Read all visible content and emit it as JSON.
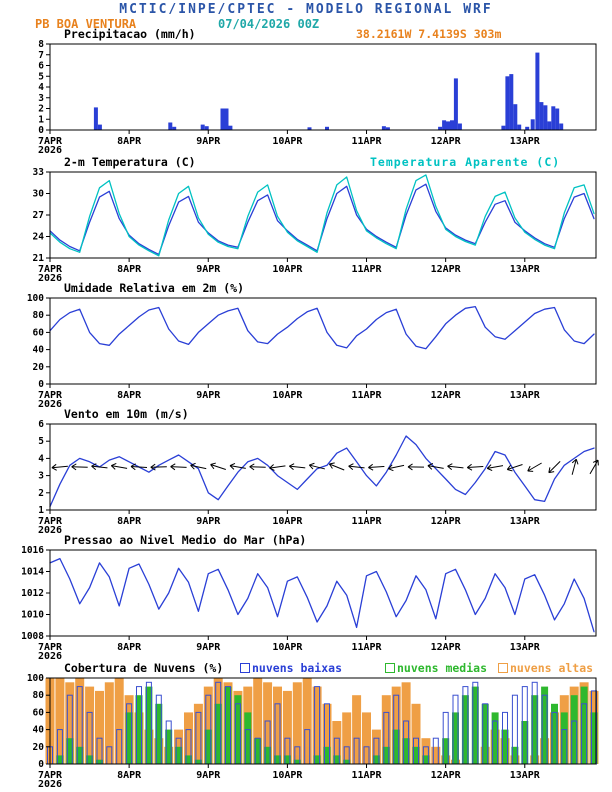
{
  "header": {
    "title": "MCTIC/INPE/CPTEC - MODELO REGIONAL WRF",
    "station": "PB BOA VENTURA",
    "run": "07/04/2026 00Z",
    "location": "38.2161W 7.4139S 303m"
  },
  "colors": {
    "header_blue": "#2b55a8",
    "teal": "#1fa8a8",
    "orange": "#e8821e",
    "series_blue": "#2a3fd6",
    "cyan": "#00c2c2",
    "green": "#2eb82e",
    "cloud_orange": "#ef9f45",
    "ink": "#000000"
  },
  "time_axis": {
    "xlim": [
      0,
      6.9
    ],
    "xticks": [
      0,
      1,
      2,
      3,
      4,
      5,
      6
    ],
    "xtick_labels": [
      "7APR",
      "8APR",
      "9APR",
      "10APR",
      "11APR",
      "12APR",
      "13APR"
    ],
    "year_label": "2026",
    "sample_start": 0,
    "sample_step": 0.125,
    "sample_count": 56
  },
  "chart_data": [
    {
      "name": "precipitation",
      "type": "bar",
      "title": "Precipitacao (mm/h)",
      "ylabel": "mm/h",
      "ylim": [
        0,
        8
      ],
      "yticks": [
        0,
        1,
        2,
        3,
        4,
        5,
        6,
        7,
        8
      ],
      "bar_color": "#2a3fd6",
      "bars": [
        [
          0.58,
          2.1
        ],
        [
          0.63,
          0.5
        ],
        [
          1.52,
          0.7
        ],
        [
          1.57,
          0.3
        ],
        [
          1.93,
          0.5
        ],
        [
          1.98,
          0.35
        ],
        [
          2.18,
          2.0
        ],
        [
          2.23,
          2.0
        ],
        [
          2.28,
          0.4
        ],
        [
          3.28,
          0.25
        ],
        [
          3.5,
          0.3
        ],
        [
          4.22,
          0.35
        ],
        [
          4.27,
          0.25
        ],
        [
          4.93,
          0.3
        ],
        [
          4.98,
          0.9
        ],
        [
          5.03,
          0.8
        ],
        [
          5.08,
          0.9
        ],
        [
          5.13,
          4.8
        ],
        [
          5.18,
          0.6
        ],
        [
          5.73,
          0.4
        ],
        [
          5.78,
          5.0
        ],
        [
          5.83,
          5.2
        ],
        [
          5.88,
          2.4
        ],
        [
          5.93,
          0.5
        ],
        [
          6.03,
          0.3
        ],
        [
          6.1,
          1.0
        ],
        [
          6.16,
          7.2
        ],
        [
          6.21,
          2.6
        ],
        [
          6.26,
          2.3
        ],
        [
          6.31,
          0.8
        ],
        [
          6.36,
          2.2
        ],
        [
          6.41,
          2.0
        ],
        [
          6.46,
          0.6
        ]
      ]
    },
    {
      "name": "temperature_2m",
      "type": "line",
      "title": "2-m Temperatura (C)",
      "legend_label": "Temperatura Aparente (C)",
      "ylim": [
        21,
        33
      ],
      "yticks": [
        21,
        24,
        27,
        30,
        33
      ],
      "series": [
        {
          "name": "2-m Temperatura (C)",
          "color": "#2a3fd6",
          "values": [
            24.8,
            23.5,
            22.6,
            22.0,
            26.0,
            29.5,
            30.3,
            26.5,
            24.2,
            23.0,
            22.2,
            21.5,
            25.5,
            28.8,
            29.6,
            26.0,
            24.5,
            23.4,
            22.8,
            22.5,
            26.0,
            29.0,
            29.8,
            26.2,
            24.8,
            23.6,
            22.8,
            22.0,
            26.5,
            30.0,
            31.0,
            27.0,
            25.0,
            24.0,
            23.2,
            22.5,
            27.0,
            30.5,
            31.3,
            27.5,
            25.2,
            24.2,
            23.5,
            23.0,
            26.0,
            28.5,
            29.0,
            26.0,
            24.8,
            23.8,
            23.0,
            22.5,
            26.5,
            29.5,
            30.0,
            26.5
          ]
        },
        {
          "name": "Temperatura Aparente (C)",
          "color": "#00c2c2",
          "values": [
            24.5,
            23.2,
            22.3,
            21.8,
            26.8,
            30.8,
            31.8,
            27.2,
            24.0,
            22.8,
            22.0,
            21.3,
            26.3,
            30.0,
            31.0,
            26.6,
            24.3,
            23.2,
            22.6,
            22.3,
            26.8,
            30.2,
            31.2,
            26.8,
            24.6,
            23.4,
            22.6,
            21.8,
            27.3,
            31.2,
            32.3,
            27.6,
            24.8,
            23.8,
            23.0,
            22.3,
            27.8,
            31.8,
            32.6,
            28.2,
            25.0,
            24.0,
            23.3,
            22.8,
            26.8,
            29.6,
            30.2,
            26.6,
            24.6,
            23.6,
            22.8,
            22.3,
            27.3,
            30.8,
            31.2,
            27.2
          ]
        }
      ]
    },
    {
      "name": "relative_humidity_2m",
      "type": "line",
      "title": "Umidade Relativa em 2m (%)",
      "ylim": [
        0,
        100
      ],
      "yticks": [
        0,
        20,
        40,
        60,
        80,
        100
      ],
      "series": [
        {
          "name": "Umidade Relativa em 2m",
          "color": "#2a3fd6",
          "values": [
            62,
            75,
            83,
            87,
            60,
            47,
            45,
            58,
            68,
            78,
            86,
            89,
            64,
            50,
            46,
            60,
            70,
            80,
            85,
            88,
            62,
            49,
            47,
            58,
            66,
            76,
            84,
            88,
            60,
            45,
            42,
            56,
            64,
            75,
            83,
            87,
            58,
            44,
            41,
            55,
            70,
            80,
            88,
            90,
            66,
            55,
            52,
            62,
            72,
            82,
            87,
            89,
            63,
            50,
            47,
            58
          ]
        }
      ]
    },
    {
      "name": "wind_10m",
      "type": "line",
      "title": "Vento em 10m (m/s)",
      "ylim": [
        1,
        6
      ],
      "yticks": [
        1,
        2,
        3,
        4,
        5,
        6
      ],
      "series": [
        {
          "name": "Vento em 10m",
          "color": "#2a3fd6",
          "values": [
            1.2,
            2.5,
            3.6,
            4.0,
            3.8,
            3.5,
            3.9,
            4.1,
            3.8,
            3.5,
            3.2,
            3.6,
            3.9,
            4.2,
            3.8,
            3.4,
            2.0,
            1.6,
            2.4,
            3.2,
            3.8,
            4.0,
            3.6,
            3.0,
            2.6,
            2.2,
            2.8,
            3.4,
            3.6,
            4.3,
            4.6,
            3.8,
            3.0,
            2.4,
            3.2,
            4.2,
            5.3,
            4.8,
            4.0,
            3.4,
            2.8,
            2.2,
            1.9,
            2.6,
            3.4,
            4.4,
            4.2,
            3.2,
            2.4,
            1.6,
            1.5,
            2.8,
            3.6,
            4.0,
            4.4,
            4.6
          ]
        }
      ],
      "barbs": {
        "y": 3.5,
        "x_start": 0.125,
        "x_step": 0.25,
        "color": "#000000",
        "angles": [
          175,
          182,
          186,
          190,
          184,
          178,
          183,
          192,
          198,
          190,
          182,
          172,
          186,
          194,
          202,
          186,
          176,
          168,
          181,
          190,
          186,
          176,
          170,
          162,
          150,
          135,
          -75,
          -60
        ]
      }
    },
    {
      "name": "mslp",
      "type": "line",
      "title": "Pressao ao Nivel Medio do Mar (hPa)",
      "ylim": [
        1008,
        1016
      ],
      "yticks": [
        1008,
        1010,
        1012,
        1014,
        1016
      ],
      "series": [
        {
          "name": "Pressao ao Nivel Medio do Mar",
          "color": "#2a3fd6",
          "values": [
            1014.8,
            1015.2,
            1013.3,
            1011.0,
            1012.5,
            1014.8,
            1013.5,
            1010.8,
            1014.3,
            1014.7,
            1012.8,
            1010.5,
            1012.0,
            1014.3,
            1013.0,
            1010.3,
            1013.8,
            1014.2,
            1012.3,
            1010.0,
            1011.5,
            1013.8,
            1012.5,
            1009.8,
            1013.1,
            1013.5,
            1011.6,
            1009.3,
            1010.8,
            1013.1,
            1011.8,
            1008.8,
            1013.6,
            1014.0,
            1012.1,
            1009.8,
            1011.3,
            1013.6,
            1012.3,
            1009.6,
            1013.8,
            1014.2,
            1012.3,
            1010.0,
            1011.5,
            1013.8,
            1012.5,
            1010.0,
            1013.3,
            1013.7,
            1011.8,
            1009.5,
            1011.0,
            1013.3,
            1011.5,
            1008.4
          ]
        }
      ]
    },
    {
      "name": "cloud_cover",
      "type": "bar",
      "title": "Cobertura de Nuvens (%)",
      "ylim": [
        0,
        100
      ],
      "yticks": [
        0,
        20,
        40,
        60,
        80,
        100
      ],
      "series": [
        {
          "name": "nuvens baixas",
          "color": "#3a4fd0",
          "style": "outline",
          "values": [
            20,
            40,
            80,
            90,
            60,
            30,
            20,
            40,
            70,
            90,
            95,
            80,
            50,
            30,
            40,
            60,
            80,
            95,
            90,
            70,
            40,
            30,
            50,
            70,
            30,
            20,
            40,
            90,
            70,
            30,
            20,
            30,
            20,
            30,
            60,
            80,
            50,
            30,
            20,
            30,
            60,
            80,
            90,
            95,
            70,
            50,
            60,
            80,
            90,
            95,
            80,
            60,
            40,
            50,
            70,
            85
          ]
        },
        {
          "name": "nuvens medias",
          "color": "#2eb82e",
          "style": "fill",
          "values": [
            0,
            10,
            30,
            20,
            10,
            5,
            0,
            0,
            60,
            80,
            90,
            70,
            40,
            20,
            10,
            5,
            40,
            70,
            90,
            80,
            60,
            30,
            20,
            10,
            10,
            5,
            0,
            10,
            20,
            10,
            5,
            0,
            0,
            10,
            20,
            40,
            30,
            20,
            10,
            0,
            30,
            60,
            80,
            90,
            70,
            60,
            40,
            20,
            50,
            80,
            90,
            70,
            60,
            80,
            90,
            60
          ]
        },
        {
          "name": "nuvens altas",
          "color": "#ef9f45",
          "style": "fill",
          "values": [
            100,
            100,
            95,
            100,
            90,
            85,
            95,
            100,
            80,
            60,
            40,
            30,
            20,
            40,
            60,
            70,
            90,
            100,
            95,
            85,
            90,
            100,
            95,
            90,
            85,
            95,
            100,
            90,
            70,
            50,
            60,
            80,
            60,
            40,
            80,
            90,
            95,
            70,
            30,
            20,
            10,
            5,
            0,
            0,
            20,
            40,
            30,
            10,
            0,
            10,
            30,
            60,
            80,
            90,
            95,
            85
          ]
        }
      ]
    }
  ]
}
